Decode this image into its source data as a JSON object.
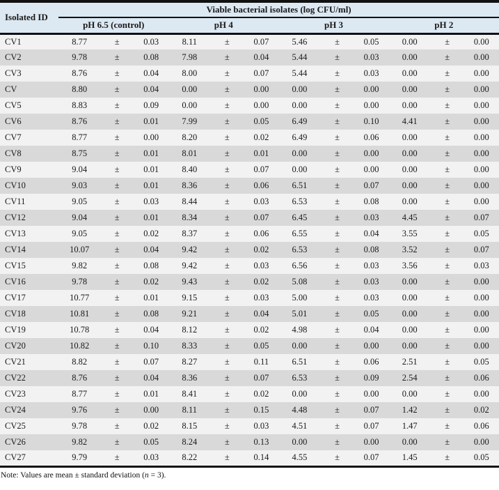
{
  "table": {
    "id_header": "Isolated ID",
    "title": "Viable bacterial isolates (log CFU/ml)",
    "group_headers": [
      "pH 6.5 (control)",
      "pH 4",
      "pH 3",
      "pH 2"
    ],
    "plus_minus": "±",
    "rows": [
      {
        "id": "CV1",
        "values": [
          [
            "8.77",
            "0.03"
          ],
          [
            "8.11",
            "0.07"
          ],
          [
            "5.46",
            "0.05"
          ],
          [
            "0.00",
            "0.00"
          ]
        ]
      },
      {
        "id": "CV2",
        "values": [
          [
            "9.78",
            "0.08"
          ],
          [
            "7.98",
            "0.04"
          ],
          [
            "5.44",
            "0.03"
          ],
          [
            "0.00",
            "0.00"
          ]
        ]
      },
      {
        "id": "CV3",
        "values": [
          [
            "8.76",
            "0.04"
          ],
          [
            "8.00",
            "0.07"
          ],
          [
            "5.44",
            "0.03"
          ],
          [
            "0.00",
            "0.00"
          ]
        ]
      },
      {
        "id": "CV",
        "values": [
          [
            "8.80",
            "0.04"
          ],
          [
            "0.00",
            "0.00"
          ],
          [
            "0.00",
            "0.00"
          ],
          [
            "0.00",
            "0.00"
          ]
        ]
      },
      {
        "id": "CV5",
        "values": [
          [
            "8.83",
            "0.09"
          ],
          [
            "0.00",
            "0.00"
          ],
          [
            "0.00",
            "0.00"
          ],
          [
            "0.00",
            "0.00"
          ]
        ]
      },
      {
        "id": "CV6",
        "values": [
          [
            "8.76",
            "0.01"
          ],
          [
            "7.99",
            "0.05"
          ],
          [
            "6.49",
            "0.10"
          ],
          [
            "4.41",
            "0.00"
          ]
        ]
      },
      {
        "id": "CV7",
        "values": [
          [
            "8.77",
            "0.00"
          ],
          [
            "8.20",
            "0.02"
          ],
          [
            "6.49",
            "0.06"
          ],
          [
            "0.00",
            "0.00"
          ]
        ]
      },
      {
        "id": "CV8",
        "values": [
          [
            "8.75",
            "0.01"
          ],
          [
            "8.01",
            "0.01"
          ],
          [
            "0.00",
            "0.00"
          ],
          [
            "0.00",
            "0.00"
          ]
        ]
      },
      {
        "id": "CV9",
        "values": [
          [
            "9.04",
            "0.01"
          ],
          [
            "8.40",
            "0.07"
          ],
          [
            "0.00",
            "0.00"
          ],
          [
            "0.00",
            "0.00"
          ]
        ]
      },
      {
        "id": "CV10",
        "values": [
          [
            "9.03",
            "0.01"
          ],
          [
            "8.36",
            "0.06"
          ],
          [
            "6.51",
            "0.07"
          ],
          [
            "0.00",
            "0.00"
          ]
        ]
      },
      {
        "id": "CV11",
        "values": [
          [
            "9.05",
            "0.03"
          ],
          [
            "8.44",
            "0.03"
          ],
          [
            "6.53",
            "0.08"
          ],
          [
            "0.00",
            "0.00"
          ]
        ]
      },
      {
        "id": "CV12",
        "values": [
          [
            "9.04",
            "0.01"
          ],
          [
            "8.34",
            "0.07"
          ],
          [
            "6.45",
            "0.03"
          ],
          [
            "4.45",
            "0.07"
          ]
        ]
      },
      {
        "id": "CV13",
        "values": [
          [
            "9.05",
            "0.02"
          ],
          [
            "8.37",
            "0.06"
          ],
          [
            "6.55",
            "0.04"
          ],
          [
            "3.55",
            "0.05"
          ]
        ]
      },
      {
        "id": "CV14",
        "values": [
          [
            "10.07",
            "0.04"
          ],
          [
            "9.42",
            "0.02"
          ],
          [
            "6.53",
            "0.08"
          ],
          [
            "3.52",
            "0.07"
          ]
        ]
      },
      {
        "id": "CV15",
        "values": [
          [
            "9.82",
            "0.08"
          ],
          [
            "9.42",
            "0.03"
          ],
          [
            "6.56",
            "0.03"
          ],
          [
            "3.56",
            "0.03"
          ]
        ]
      },
      {
        "id": "CV16",
        "values": [
          [
            "9.78",
            "0.02"
          ],
          [
            "9.43",
            "0.02"
          ],
          [
            "5.08",
            "0.03"
          ],
          [
            "0.00",
            "0.00"
          ]
        ]
      },
      {
        "id": "CV17",
        "values": [
          [
            "10.77",
            "0.01"
          ],
          [
            "9.15",
            "0.03"
          ],
          [
            "5.00",
            "0.03"
          ],
          [
            "0.00",
            "0.00"
          ]
        ]
      },
      {
        "id": "CV18",
        "values": [
          [
            "10.81",
            "0.08"
          ],
          [
            "9.21",
            "0.04"
          ],
          [
            "5.01",
            "0.05"
          ],
          [
            "0.00",
            "0.00"
          ]
        ]
      },
      {
        "id": "CV19",
        "values": [
          [
            "10.78",
            "0.04"
          ],
          [
            "8.12",
            "0.02"
          ],
          [
            "4.98",
            "0.04"
          ],
          [
            "0.00",
            "0.00"
          ]
        ]
      },
      {
        "id": "CV20",
        "values": [
          [
            "10.82",
            "0.10"
          ],
          [
            "8.33",
            "0.05"
          ],
          [
            "0.00",
            "0.00"
          ],
          [
            "0.00",
            "0.00"
          ]
        ]
      },
      {
        "id": "CV21",
        "values": [
          [
            "8.82",
            "0.07"
          ],
          [
            "8.27",
            "0.11"
          ],
          [
            "6.51",
            "0.06"
          ],
          [
            "2.51",
            "0.05"
          ]
        ]
      },
      {
        "id": "CV22",
        "values": [
          [
            "8.76",
            "0.04"
          ],
          [
            "8.36",
            "0.07"
          ],
          [
            "6.53",
            "0.09"
          ],
          [
            "2.54",
            "0.06"
          ]
        ]
      },
      {
        "id": "CV23",
        "values": [
          [
            "8.77",
            "0.01"
          ],
          [
            "8.41",
            "0.02"
          ],
          [
            "0.00",
            "0.00"
          ],
          [
            "0.00",
            "0.00"
          ]
        ]
      },
      {
        "id": "CV24",
        "values": [
          [
            "9.76",
            "0.00"
          ],
          [
            "8.11",
            "0.15"
          ],
          [
            "4.48",
            "0.07"
          ],
          [
            "1.42",
            "0.02"
          ]
        ]
      },
      {
        "id": "CV25",
        "values": [
          [
            "9.78",
            "0.02"
          ],
          [
            "8.15",
            "0.03"
          ],
          [
            "4.51",
            "0.07"
          ],
          [
            "1.47",
            "0.06"
          ]
        ]
      },
      {
        "id": "CV26",
        "values": [
          [
            "9.82",
            "0.05"
          ],
          [
            "8.24",
            "0.13"
          ],
          [
            "0.00",
            "0.00"
          ],
          [
            "0.00",
            "0.00"
          ]
        ]
      },
      {
        "id": "CV27",
        "values": [
          [
            "9.79",
            "0.03"
          ],
          [
            "8.22",
            "0.14"
          ],
          [
            "4.55",
            "0.07"
          ],
          [
            "1.45",
            "0.05"
          ]
        ]
      }
    ]
  },
  "note": {
    "prefix": "Note: Values are mean ± standard deviation (",
    "n": "n",
    "suffix": " = 3)."
  },
  "colors": {
    "header_background": "#dce8f2",
    "row_light": "#f2f2f2",
    "row_shaded": "#d9d9d9",
    "rule_color": "#111111"
  }
}
